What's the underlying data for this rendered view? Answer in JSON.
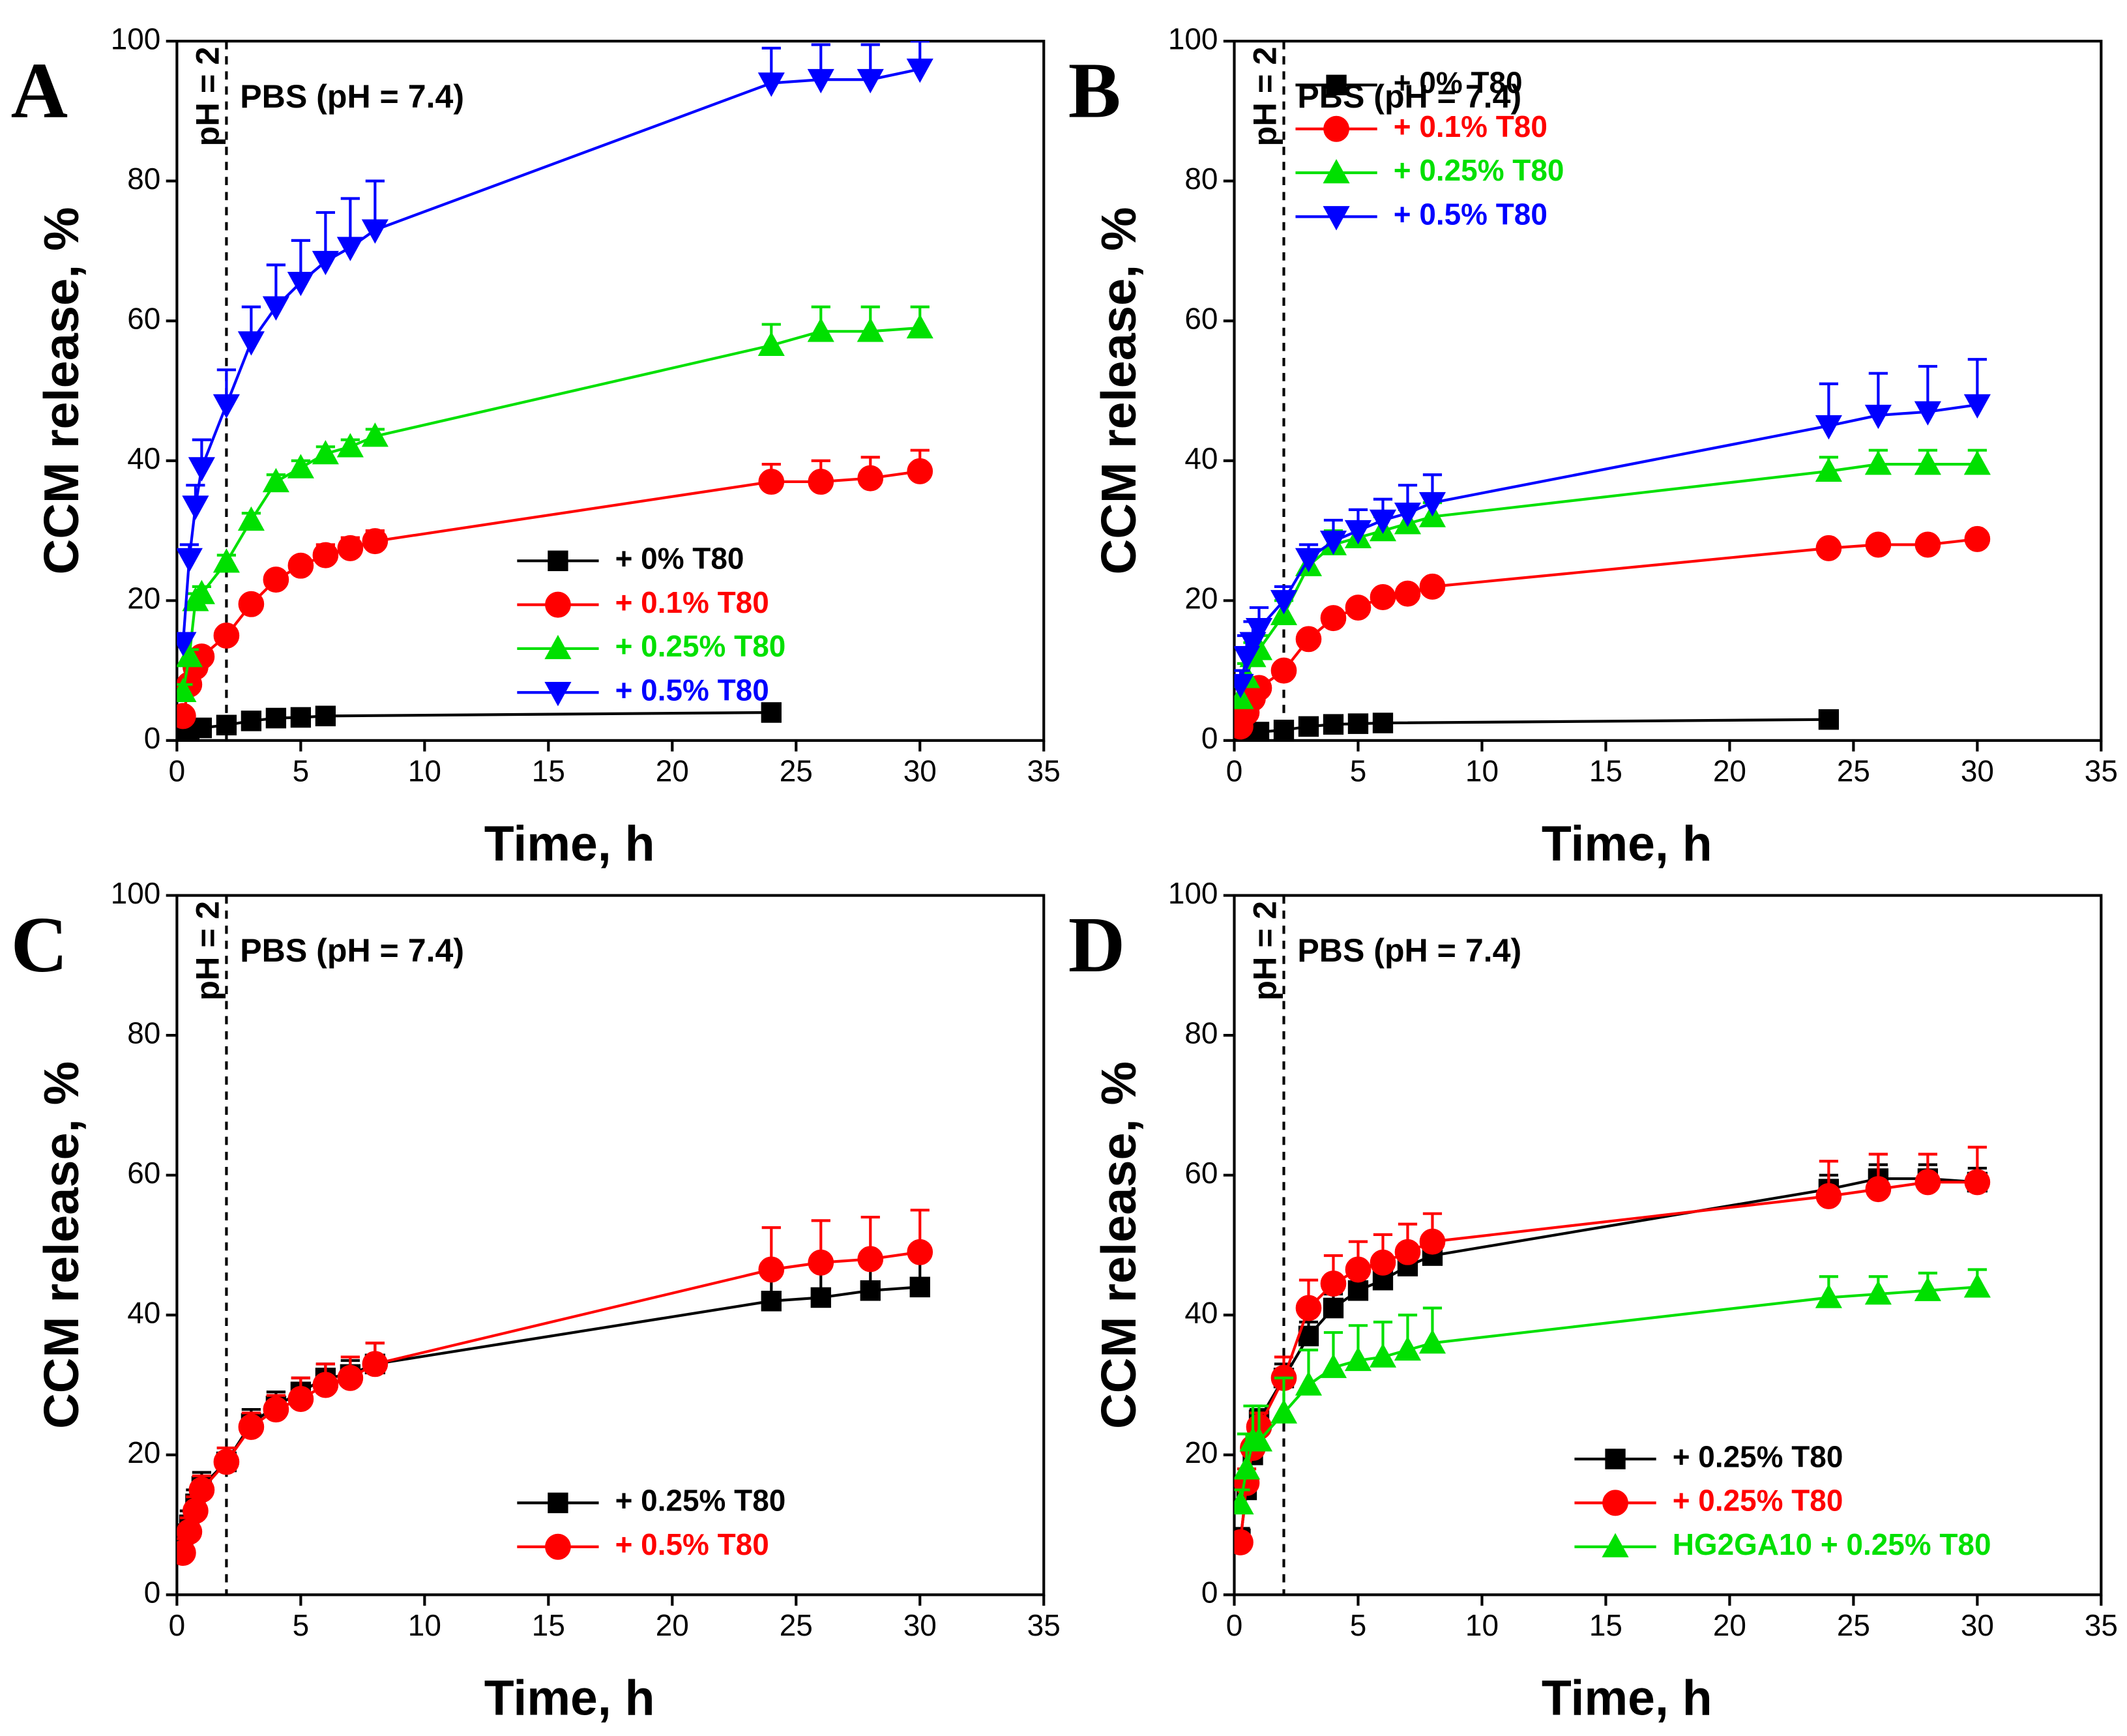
{
  "chart_data": [
    {
      "type": "line",
      "panel_label": "A",
      "annotation": "PBS (pH = 7.4)",
      "ph_label": "pH = 2",
      "vline": 2,
      "xlabel": "Time, h",
      "ylabel": "CCM release, %",
      "xlim": [
        0,
        35
      ],
      "ylim": [
        0,
        100
      ],
      "xticks": [
        0,
        5,
        10,
        15,
        20,
        25,
        30,
        35
      ],
      "yticks": [
        0,
        20,
        40,
        60,
        80,
        100
      ],
      "legend": "lower right",
      "series": [
        {
          "name": "+ 0% T80",
          "color": "#000000",
          "marker": "square",
          "x": [
            0.25,
            0.5,
            1,
            2,
            3,
            4,
            5,
            6,
            24
          ],
          "values": [
            1,
            1.5,
            1.8,
            2.2,
            2.8,
            3.2,
            3.3,
            3.5,
            4
          ],
          "errors": [
            0.5,
            0.5,
            0.5,
            0.5,
            0.5,
            0.5,
            0.5,
            0.5,
            0.8
          ]
        },
        {
          "name": "+ 0.1% T80",
          "color": "#ff0000",
          "marker": "circle",
          "x": [
            0.25,
            0.5,
            0.75,
            1,
            2,
            3,
            4,
            5,
            6,
            7,
            8,
            24,
            26,
            28,
            30
          ],
          "values": [
            3.5,
            8,
            10.5,
            12,
            15,
            19.5,
            23,
            25,
            26.5,
            27.5,
            28.5,
            37,
            37,
            37.5,
            38.5
          ],
          "errors": [
            1,
            1,
            1,
            1,
            1,
            1,
            1,
            1,
            1.5,
            1.5,
            1.5,
            2.5,
            3,
            3,
            3
          ]
        },
        {
          "name": "+ 0.25% T80",
          "color": "#00e000",
          "marker": "triangle-up",
          "x": [
            0.25,
            0.5,
            0.75,
            1,
            2,
            3,
            4,
            5,
            6,
            7,
            8,
            24,
            26,
            28,
            30
          ],
          "values": [
            7,
            12,
            20,
            21,
            25.5,
            31.5,
            37,
            39,
            41,
            42,
            43.5,
            56.5,
            58.5,
            58.5,
            59
          ],
          "errors": [
            1,
            1,
            1,
            1,
            1,
            1,
            1,
            1,
            1,
            1,
            1,
            3,
            3.5,
            3.5,
            3
          ]
        },
        {
          "name": "+ 0.5% T80",
          "color": "#0000ff",
          "marker": "triangle-down",
          "x": [
            0.25,
            0.5,
            0.75,
            1,
            2,
            3,
            4,
            5,
            6,
            7,
            8,
            24,
            26,
            28,
            30
          ],
          "values": [
            14,
            26,
            33.5,
            39,
            48,
            57,
            62,
            65.5,
            68.5,
            70.5,
            73,
            94,
            94.5,
            94.5,
            96
          ],
          "errors": [
            1,
            2,
            3,
            4,
            5,
            5,
            6,
            6,
            7,
            7,
            7,
            5,
            5,
            5,
            4
          ]
        }
      ]
    },
    {
      "type": "line",
      "panel_label": "B",
      "annotation": "PBS (pH = 7.4)",
      "ph_label": "pH = 2",
      "vline": 2,
      "xlabel": "Time, h",
      "ylabel": "CCM release, %",
      "xlim": [
        0,
        35
      ],
      "ylim": [
        0,
        100
      ],
      "xticks": [
        0,
        5,
        10,
        15,
        20,
        25,
        30,
        35
      ],
      "yticks": [
        0,
        20,
        40,
        60,
        80,
        100
      ],
      "legend": "upper left",
      "series": [
        {
          "name": "+ 0% T80",
          "color": "#000000",
          "marker": "square",
          "x": [
            0.25,
            0.5,
            1,
            2,
            3,
            4,
            5,
            6,
            24
          ],
          "values": [
            0.5,
            1,
            1.2,
            1.5,
            2,
            2.3,
            2.4,
            2.5,
            3
          ],
          "errors": [
            0.5,
            0.5,
            0.5,
            0.5,
            0.5,
            0.5,
            0.5,
            0.5,
            0.5
          ]
        },
        {
          "name": "+ 0.1% T80",
          "color": "#ff0000",
          "marker": "circle",
          "x": [
            0.25,
            0.5,
            0.75,
            1,
            2,
            3,
            4,
            5,
            6,
            7,
            8,
            24,
            26,
            28,
            30
          ],
          "values": [
            2,
            4,
            6,
            7.5,
            10,
            14.5,
            17.5,
            19,
            20.5,
            21,
            22,
            27.5,
            28,
            28,
            28.8
          ],
          "errors": [
            1,
            1,
            1,
            1,
            1,
            1,
            1,
            1,
            1,
            1,
            1,
            1,
            1,
            1,
            1
          ]
        },
        {
          "name": "+ 0.25% T80",
          "color": "#00e000",
          "marker": "triangle-up",
          "x": [
            0.25,
            0.5,
            0.75,
            1,
            2,
            3,
            4,
            5,
            6,
            7,
            8,
            24,
            26,
            28,
            30
          ],
          "values": [
            6,
            9,
            12,
            13,
            18,
            25,
            28,
            29,
            30,
            31,
            32,
            38.5,
            39.5,
            39.5,
            39.5
          ],
          "errors": [
            2,
            2,
            2,
            2,
            2,
            2,
            2,
            2,
            2,
            2,
            2,
            2,
            2,
            2,
            2
          ]
        },
        {
          "name": "+ 0.5% T80",
          "color": "#0000ff",
          "marker": "triangle-down",
          "x": [
            0.25,
            0.5,
            0.75,
            1,
            2,
            3,
            4,
            5,
            6,
            7,
            8,
            24,
            26,
            28,
            30
          ],
          "values": [
            8,
            12,
            14,
            16,
            20,
            26,
            28.5,
            30,
            31.5,
            32.5,
            34,
            45,
            46.5,
            47,
            48
          ],
          "errors": [
            2,
            3,
            3,
            3,
            2,
            2,
            3,
            3,
            3,
            4,
            4,
            6,
            6,
            6.5,
            6.5
          ]
        }
      ]
    },
    {
      "type": "line",
      "panel_label": "C",
      "annotation": "PBS (pH = 7.4)",
      "ph_label": "pH = 2",
      "vline": 2,
      "xlabel": "Time, h",
      "ylabel": "CCM release, %",
      "xlim": [
        0,
        35
      ],
      "ylim": [
        0,
        100
      ],
      "xticks": [
        0,
        5,
        10,
        15,
        20,
        25,
        30,
        35
      ],
      "yticks": [
        0,
        20,
        40,
        60,
        80,
        100
      ],
      "legend": "lower right",
      "series": [
        {
          "name": "+ 0.25% T80",
          "color": "#000000",
          "marker": "square",
          "x": [
            0.25,
            0.5,
            0.75,
            1,
            2,
            3,
            4,
            5,
            6,
            7,
            8,
            24,
            26,
            28,
            30
          ],
          "values": [
            8,
            10,
            13,
            15.5,
            19,
            24.5,
            27,
            29,
            31,
            31.5,
            33,
            42,
            42.5,
            43.5,
            44
          ],
          "errors": [
            2,
            2,
            2,
            2,
            2,
            2,
            2,
            2,
            2,
            2,
            3,
            4,
            4,
            4.5,
            5
          ]
        },
        {
          "name": "+ 0.5% T80",
          "color": "#ff0000",
          "marker": "circle",
          "x": [
            0.25,
            0.5,
            0.75,
            1,
            2,
            3,
            4,
            5,
            6,
            7,
            8,
            24,
            26,
            28,
            30
          ],
          "values": [
            6,
            9,
            12,
            15,
            19,
            24,
            26.5,
            28,
            30,
            31,
            33,
            46.5,
            47.5,
            48,
            49
          ],
          "errors": [
            2,
            2,
            2,
            2,
            2,
            2,
            2,
            3,
            3,
            3,
            3,
            6,
            6,
            6,
            6
          ]
        }
      ]
    },
    {
      "type": "line",
      "panel_label": "D",
      "annotation": "PBS (pH = 7.4)",
      "ph_label": "pH = 2",
      "vline": 2,
      "xlabel": "Time, h",
      "ylabel": "CCM release, %",
      "xlim": [
        0,
        35
      ],
      "ylim": [
        0,
        100
      ],
      "xticks": [
        0,
        5,
        10,
        15,
        20,
        25,
        30,
        35
      ],
      "yticks": [
        0,
        20,
        40,
        60,
        80,
        100
      ],
      "legend": "lower right",
      "series": [
        {
          "name": "+ 0.25% T80",
          "color": "#000000",
          "marker": "square",
          "x": [
            0.25,
            0.5,
            0.75,
            1,
            2,
            3,
            4,
            5,
            6,
            7,
            8,
            24,
            26,
            28,
            30
          ],
          "values": [
            8,
            15,
            20,
            25,
            31,
            37,
            41,
            43.5,
            45,
            47,
            48.5,
            58,
            59.5,
            59.5,
            59
          ],
          "errors": [
            1.5,
            1.5,
            1.5,
            1.5,
            2,
            2,
            2,
            2,
            2,
            2,
            2,
            2,
            2,
            2,
            2
          ]
        },
        {
          "name": "+ 0.25% T80",
          "color": "#ff0000",
          "marker": "circle",
          "x": [
            0.25,
            0.5,
            0.75,
            1,
            2,
            3,
            4,
            5,
            6,
            7,
            8,
            24,
            26,
            28,
            30
          ],
          "values": [
            7.5,
            16,
            21,
            24,
            31,
            41,
            44.5,
            46.5,
            47.5,
            49,
            50.5,
            57,
            58,
            59,
            59
          ],
          "errors": [
            1,
            2,
            2,
            2,
            3,
            4,
            4,
            4,
            4,
            4,
            4,
            5,
            5,
            4,
            5
          ]
        },
        {
          "name": "HG2GA10 + 0.25% T80",
          "color": "#00e000",
          "marker": "triangle-up",
          "x": [
            0.25,
            0.5,
            0.75,
            1,
            2,
            3,
            4,
            5,
            6,
            7,
            8,
            24,
            26,
            28,
            30
          ],
          "values": [
            13,
            18,
            22,
            22,
            26,
            30,
            32.5,
            33.5,
            34,
            35,
            36,
            42.5,
            43,
            43.5,
            44
          ],
          "errors": [
            2,
            5,
            5,
            5,
            5,
            5,
            5,
            5,
            5,
            5,
            5,
            3,
            2.5,
            2.5,
            2.5
          ]
        }
      ]
    }
  ]
}
